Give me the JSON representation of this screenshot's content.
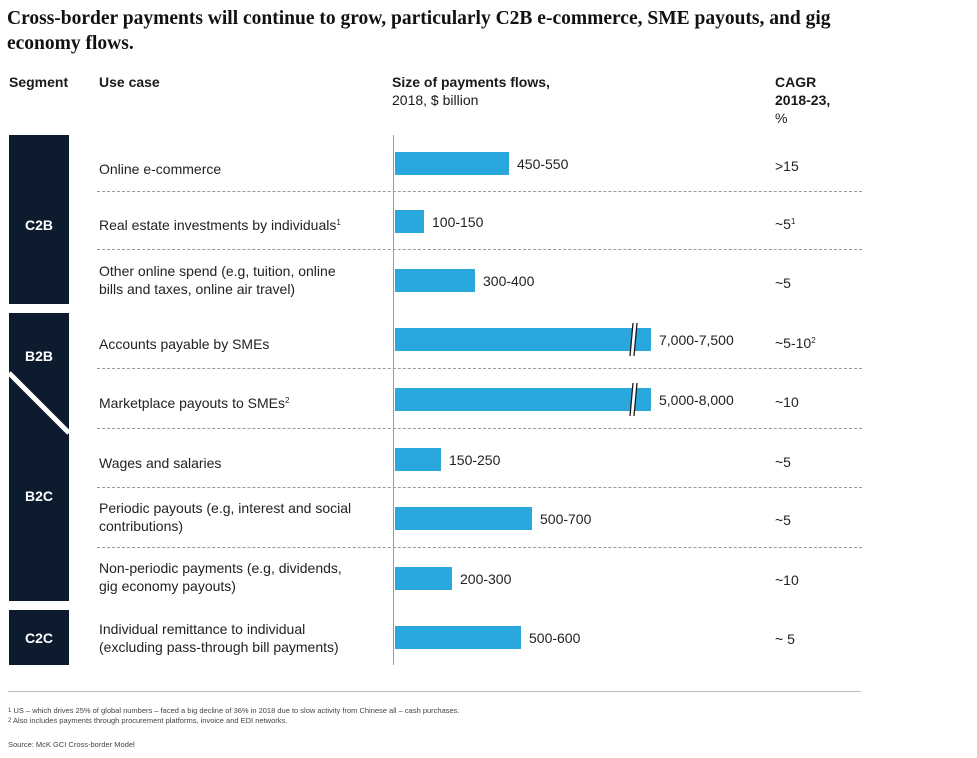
{
  "title": "Cross-border payments will continue to grow, particularly C2B e-commerce, SME payouts, and gig economy flows.",
  "headers": {
    "segment": "Segment",
    "use_case": "Use case",
    "size_title": "Size of payments flows,",
    "size_sub": "2018, $ billion",
    "cagr_l1": "CAGR",
    "cagr_l2": "2018-23,",
    "cagr_l3": "%"
  },
  "segments": [
    "C2B",
    "B2B",
    "B2C",
    "C2C"
  ],
  "chart_data": {
    "type": "bar",
    "orientation": "horizontal",
    "title": "Size of payments flows, 2018, $ billion",
    "axis_break": "bars for Accounts payable by SMEs and Marketplace payouts to SMEs are broken (truncated)",
    "categories": [
      "Online e-commerce",
      "Real estate investments by individuals",
      "Other online spend (e.g, tuition, online bills and taxes, online air travel)",
      "Accounts payable by SMEs",
      "Marketplace payouts to SMEs",
      "Wages and salaries",
      "Periodic payouts (e.g, interest and social contributions)",
      "Non-periodic payments (e.g, dividends, gig economy payouts)",
      "Individual remittance to individual (excluding pass-through bill payments)"
    ],
    "ranges": [
      [
        450,
        550
      ],
      [
        100,
        150
      ],
      [
        300,
        400
      ],
      [
        7000,
        7500
      ],
      [
        5000,
        8000
      ],
      [
        150,
        250
      ],
      [
        500,
        700
      ],
      [
        200,
        300
      ],
      [
        500,
        600
      ]
    ],
    "value_labels": [
      "450-550",
      "100-150",
      "300-400",
      "7,000-7,500",
      "5,000-8,000",
      "150-250",
      "500-700",
      "200-300",
      "500-600"
    ],
    "segment_of_row": [
      "C2B",
      "C2B",
      "C2B",
      "B2B",
      "B2B/B2C",
      "B2C",
      "B2C",
      "B2C",
      "C2C"
    ],
    "broken": [
      false,
      false,
      false,
      true,
      true,
      false,
      false,
      false,
      false
    ]
  },
  "rows": [
    {
      "line1": "Online e-commerce",
      "line2": "",
      "sup": "",
      "cagr": ">15",
      "cagr_sup": ""
    },
    {
      "line1": "Real estate investments by individuals",
      "line2": "",
      "sup": "1",
      "cagr": "~5",
      "cagr_sup": "1"
    },
    {
      "line1": "Other online spend (e.g, tuition, online",
      "line2": "bills and taxes, online air travel)",
      "sup": "",
      "cagr": "~5",
      "cagr_sup": ""
    },
    {
      "line1": "Accounts payable by SMEs",
      "line2": "",
      "sup": "",
      "cagr": "~5-10",
      "cagr_sup": "2"
    },
    {
      "line1": "Marketplace payouts to SMEs",
      "line2": "",
      "sup": "2",
      "cagr": "~10",
      "cagr_sup": ""
    },
    {
      "line1": "Wages and salaries",
      "line2": "",
      "sup": "",
      "cagr": "~5",
      "cagr_sup": ""
    },
    {
      "line1": "Periodic payouts (e.g, interest and social",
      "line2": "contributions)",
      "sup": "",
      "cagr": "~5",
      "cagr_sup": ""
    },
    {
      "line1": "Non-periodic payments (e.g, dividends,",
      "line2": "gig economy payouts)",
      "sup": "",
      "cagr": "~10",
      "cagr_sup": ""
    },
    {
      "line1": "Individual remittance to individual",
      "line2": "(excluding pass-through bill payments)",
      "sup": "",
      "cagr": "~ 5",
      "cagr_sup": ""
    }
  ],
  "footnotes": {
    "n1_mark": "1",
    "n1": "US – which drives 25% of global numbers – faced a big decline of 36% in 2018 due to slow activity from Chinese all – cash purchases.",
    "n2_mark": "2",
    "n2": "Also includes payments through procurement platforms, invoice and EDI networks.",
    "source": "Source: McK GCI Cross-border Model"
  },
  "colors": {
    "bar": "#2aa7dc",
    "segment": "#0c1b2e",
    "divider": "#9a9a9a"
  }
}
